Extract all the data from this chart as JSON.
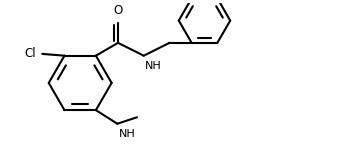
{
  "background_color": "#ffffff",
  "line_color": "#000000",
  "line_width": 1.5,
  "font_size": 8.5,
  "fig_width": 3.64,
  "fig_height": 1.64,
  "dpi": 100,
  "xlim": [
    0,
    10
  ],
  "ylim": [
    0,
    4.5
  ]
}
